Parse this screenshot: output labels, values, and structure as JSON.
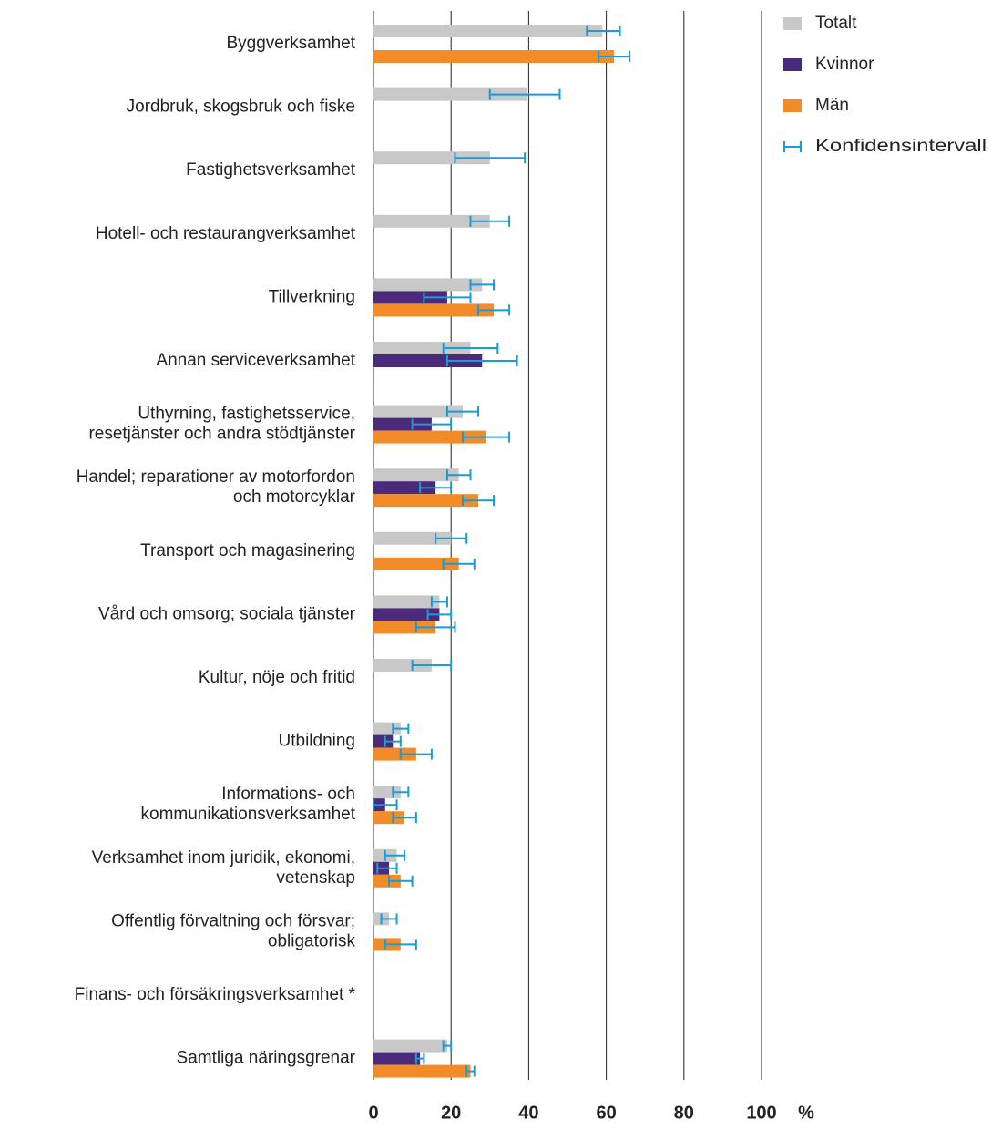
{
  "chart_data": {
    "type": "bar",
    "orientation": "horizontal",
    "categories": [
      "Byggverksamhet",
      "Jordbruk, skogsbruk och fiske",
      "Fastighetsverksamhet",
      "Hotell- och restaurangverksamhet",
      "Tillverkning",
      "Annan serviceverksamhet",
      "Uthyrning, fastighetsservice,\nresetjänster och andra stödtjänster",
      "Handel; reparationer av motorfordon\noch motorcyklar",
      "Transport och magasinering",
      "Vård och omsorg; sociala tjänster",
      "Kultur, nöje och fritid",
      "Utbildning",
      "Informations- och\nkommunikationsverksamhet",
      "Verksamhet inom juridik, ekonomi,\nvetenskap",
      "Offentlig förvaltning och försvar;\nobligatorisk",
      "Finans- och försäkringsverksamhet *",
      "Samtliga näringsgrenar"
    ],
    "series": [
      {
        "name": "Totalt",
        "color": "#c8c8c8",
        "values": [
          59,
          39.5,
          30,
          30,
          28,
          25,
          23,
          22,
          20,
          17,
          15,
          7,
          7,
          6,
          4,
          null,
          19
        ],
        "ci": [
          [
            55,
            63.5
          ],
          [
            30,
            48
          ],
          [
            21,
            39
          ],
          [
            25,
            35
          ],
          [
            25,
            31
          ],
          [
            18,
            32
          ],
          [
            19,
            27
          ],
          [
            19,
            25
          ],
          [
            16,
            24
          ],
          [
            15,
            19
          ],
          [
            10,
            20
          ],
          [
            5,
            9
          ],
          [
            5,
            9
          ],
          [
            3,
            8
          ],
          [
            2,
            6
          ],
          null,
          [
            18,
            20
          ]
        ]
      },
      {
        "name": "Kvinnor",
        "color": "#4b2a7b",
        "values": [
          null,
          null,
          null,
          null,
          19,
          28,
          15,
          16,
          null,
          17,
          null,
          5,
          3,
          4,
          null,
          null,
          12
        ],
        "ci": [
          null,
          null,
          null,
          null,
          [
            13,
            25
          ],
          [
            19,
            37
          ],
          [
            10,
            20
          ],
          [
            12,
            20
          ],
          null,
          [
            14,
            20
          ],
          null,
          [
            3,
            7
          ],
          [
            0,
            6
          ],
          [
            1,
            6
          ],
          null,
          null,
          [
            11,
            13
          ]
        ]
      },
      {
        "name": "Män",
        "color": "#f28c28",
        "values": [
          62,
          null,
          null,
          null,
          31,
          null,
          29,
          27,
          22,
          16,
          null,
          11,
          8,
          7,
          7,
          null,
          25
        ],
        "ci": [
          [
            58,
            66
          ],
          null,
          null,
          null,
          [
            27,
            35
          ],
          null,
          [
            23,
            35
          ],
          [
            23,
            31
          ],
          [
            18,
            26
          ],
          [
            11,
            21
          ],
          null,
          [
            7,
            15
          ],
          [
            5,
            11
          ],
          [
            4,
            10
          ],
          [
            3,
            11
          ],
          null,
          [
            24,
            26
          ]
        ]
      }
    ],
    "ci_legend": {
      "name": "Konfidensintervall",
      "color": "#1a9ad6"
    },
    "xlim": [
      0,
      100
    ],
    "xticks": [
      0,
      20,
      40,
      60,
      80,
      100
    ],
    "x_unit": "%",
    "grid": true
  }
}
